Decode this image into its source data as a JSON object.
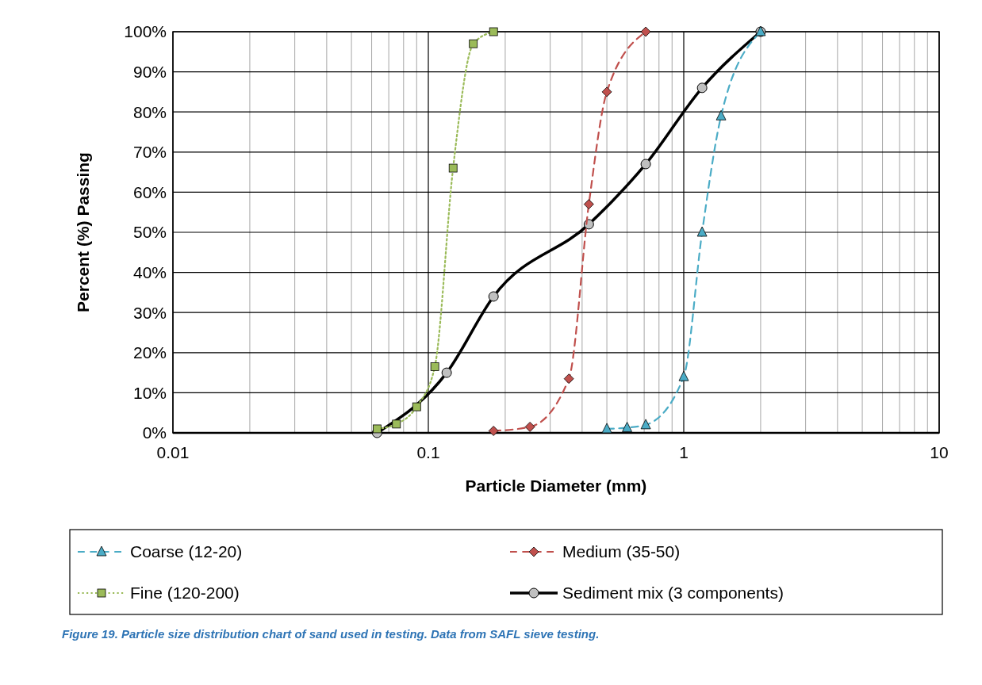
{
  "chart_data": {
    "type": "line",
    "xlabel": "Particle Diameter (mm)",
    "ylabel": "Percent (%) Passing",
    "log": "x",
    "grid": true,
    "legend": "bottom",
    "xlim": [
      0.01,
      10
    ],
    "xticks": [
      0.01,
      0.1,
      1,
      10
    ],
    "ylim": [
      0,
      100
    ],
    "yticks": [
      {
        "value": 0,
        "label": "0%"
      },
      {
        "value": 10,
        "label": "10%"
      },
      {
        "value": 20,
        "label": "20%"
      },
      {
        "value": 30,
        "label": "30%"
      },
      {
        "value": 40,
        "label": "40%"
      },
      {
        "value": 50,
        "label": "50%"
      },
      {
        "value": 60,
        "label": "60%"
      },
      {
        "value": 70,
        "label": "70%"
      },
      {
        "value": 80,
        "label": "80%"
      },
      {
        "value": 90,
        "label": "90%"
      },
      {
        "value": 100,
        "label": "100%"
      }
    ],
    "series": [
      {
        "name": "Coarse (12-20)",
        "color": "#4bacc6",
        "marker": "triangle",
        "line_style": "dashed",
        "x": [
          0.5,
          0.6,
          0.71,
          1.0,
          1.18,
          1.4,
          2.0
        ],
        "values": [
          1,
          1.3,
          2,
          14,
          50,
          79,
          100
        ]
      },
      {
        "name": "Medium (35-50)",
        "color": "#c0504d",
        "marker": "diamond",
        "line_style": "dashed",
        "x": [
          0.18,
          0.25,
          0.355,
          0.425,
          0.5,
          0.71
        ],
        "values": [
          0.5,
          1.5,
          13.5,
          57,
          85,
          100
        ]
      },
      {
        "name": "Fine (120-200)",
        "color": "#9bbb59",
        "marker": "square",
        "line_style": "dotted",
        "x": [
          0.063,
          0.075,
          0.09,
          0.106,
          0.125,
          0.15,
          0.18
        ],
        "values": [
          1,
          2.2,
          6.5,
          16.5,
          66,
          97,
          100
        ]
      },
      {
        "name": "Sediment mix (3 components)",
        "color": "#000000",
        "marker": "circle",
        "line_style": "solid",
        "x": [
          0.063,
          0.118,
          0.18,
          0.425,
          0.71,
          1.18,
          2.0
        ],
        "values": [
          0,
          15,
          34,
          52,
          67,
          86,
          100
        ]
      }
    ],
    "annotations": [
      "Figure 19. Particle size distribution chart of sand used in testing. Data from SAFL sieve testing."
    ]
  }
}
